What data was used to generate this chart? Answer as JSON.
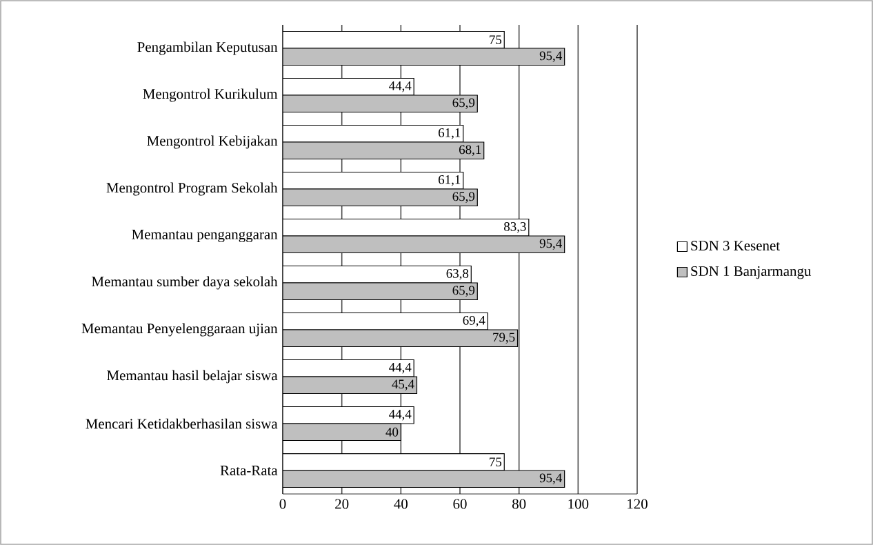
{
  "chart_data": {
    "type": "bar",
    "orientation": "horizontal",
    "categories": [
      "Pengambilan Keputusan",
      "Mengontrol Kurikulum",
      "Mengontrol Kebijakan",
      "Mengontrol Program Sekolah",
      "Memantau penganggaran",
      "Memantau sumber daya sekolah",
      "Memantau Penyelenggaraan ujian",
      "Memantau hasil belajar siswa",
      "Mencari Ketidakberhasilan siswa",
      "Rata-Rata"
    ],
    "series": [
      {
        "name": "SDN 3 Kesenet",
        "color": "#ffffff",
        "values": [
          75,
          44.4,
          61.1,
          61.1,
          83.3,
          63.8,
          69.4,
          44.4,
          44.4,
          75
        ],
        "value_labels": [
          "75",
          "44,4",
          "61,1",
          "61,1",
          "83,3",
          "63,8",
          "69,4",
          "44,4",
          "44,4",
          "75"
        ]
      },
      {
        "name": "SDN 1 Banjarmangu",
        "color": "#bfbfbf",
        "values": [
          95.4,
          65.9,
          68.1,
          65.9,
          95.4,
          65.9,
          79.5,
          45.4,
          40,
          95.4
        ],
        "value_labels": [
          "95,4",
          "65,9",
          "68,1",
          "65,9",
          "95,4",
          "65,9",
          "79,5",
          "45,4",
          "40",
          "95,4"
        ]
      }
    ],
    "xlim": [
      0,
      120
    ],
    "xticks": [
      0,
      20,
      40,
      60,
      80,
      100,
      120
    ],
    "grid": "x",
    "legend": "right"
  }
}
